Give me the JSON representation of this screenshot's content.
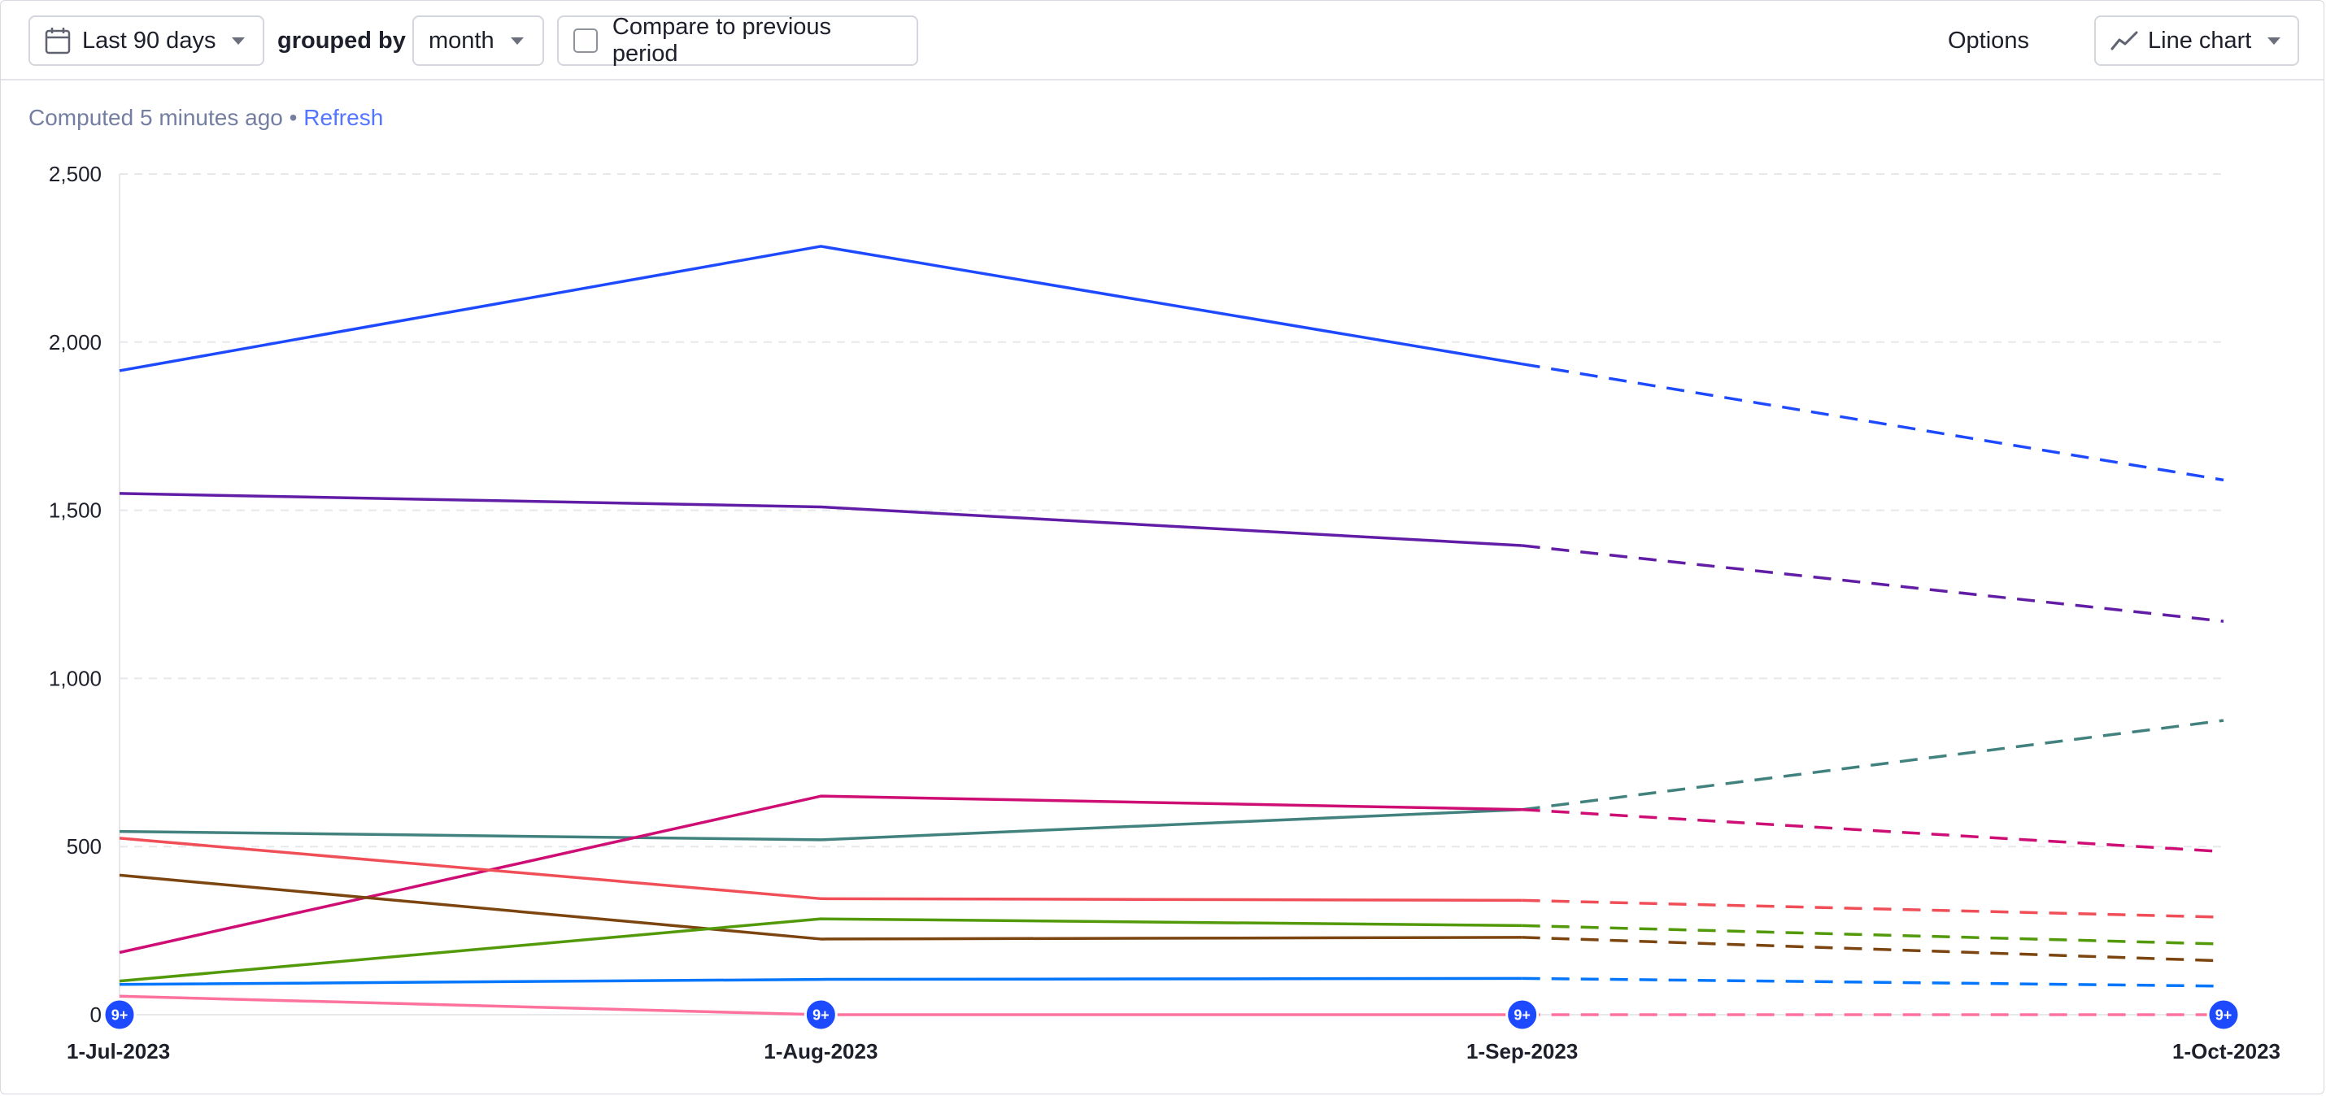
{
  "toolbar": {
    "date_range_label": "Last 90 days",
    "grouped_by_label": "grouped by",
    "interval_label": "month",
    "compare_label": "Compare to previous period",
    "options_label": "Options",
    "chart_type_label": "Line chart",
    "icons": {
      "date": "calendar-icon",
      "chart_type": "line-chart-icon",
      "dropdown": "chevron-down-icon",
      "compare": "checkbox"
    }
  },
  "status": {
    "computed_text": "Computed 5 minutes ago",
    "separator": "•",
    "refresh_label": "Refresh"
  },
  "chart_data": {
    "type": "line",
    "x": [
      "1-Jul-2023",
      "1-Aug-2023",
      "1-Sep-2023",
      "1-Oct-2023"
    ],
    "ylim": [
      0,
      2500
    ],
    "yticks": [
      "0",
      "500",
      "1,000",
      "1,500",
      "2,000",
      "2,500"
    ],
    "grid": true,
    "incomplete_from_index": 2,
    "badge_label": "9+",
    "badge_color": "#1d4aff",
    "series": [
      {
        "color": "#1d4aff",
        "values": [
          1915,
          2285,
          1935,
          1590
        ]
      },
      {
        "color": "#621da6",
        "values": [
          1550,
          1510,
          1395,
          1170
        ]
      },
      {
        "color": "#42827e",
        "values": [
          545,
          520,
          610,
          875
        ]
      },
      {
        "color": "#ce0e74",
        "values": [
          185,
          650,
          610,
          485
        ]
      },
      {
        "color": "#f14f58",
        "values": [
          525,
          345,
          340,
          290
        ]
      },
      {
        "color": "#7c440e",
        "values": [
          415,
          225,
          230,
          160
        ]
      },
      {
        "color": "#529a0a",
        "values": [
          100,
          285,
          265,
          210
        ]
      },
      {
        "color": "#0476fb",
        "values": [
          90,
          105,
          108,
          85
        ]
      },
      {
        "color": "#fe729e",
        "values": [
          55,
          0,
          0,
          0
        ]
      }
    ]
  }
}
